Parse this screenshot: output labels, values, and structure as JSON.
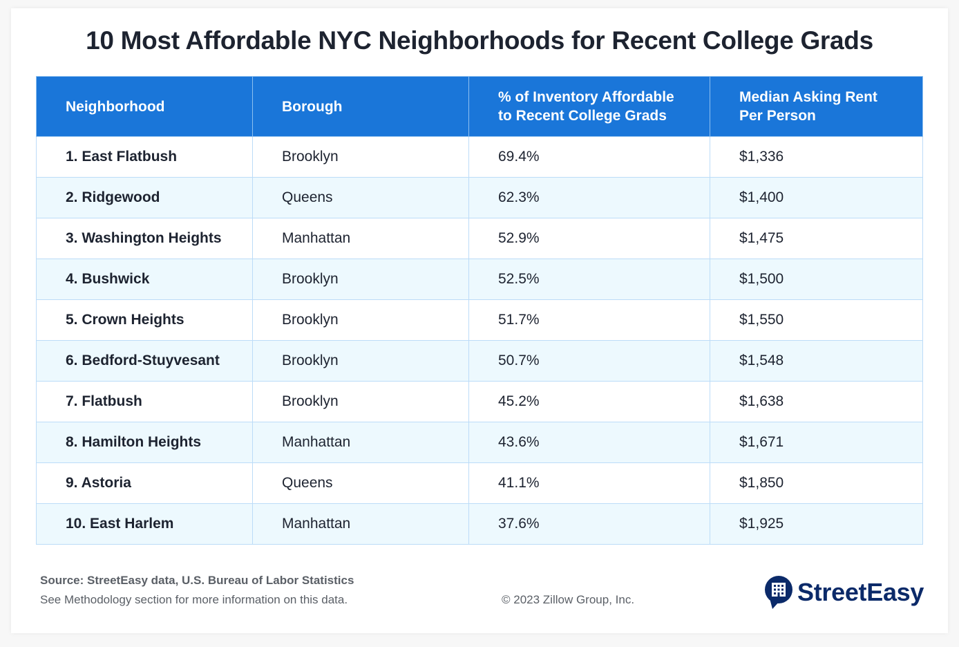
{
  "title": "10 Most Affordable NYC Neighborhoods for Recent College Grads",
  "colors": {
    "header_bg": "#1a76d9",
    "alt_row": "#edf9fe",
    "brand": "#0b2a69"
  },
  "table": {
    "headers": [
      "Neighborhood",
      "Borough",
      "% of Inventory Affordable to Recent College Grads",
      "Median Asking Rent Per Person"
    ],
    "header_lines": [
      [
        "Neighborhood"
      ],
      [
        "Borough"
      ],
      [
        "% of Inventory Affordable",
        "to Recent College Grads"
      ],
      [
        "Median Asking Rent",
        "Per Person"
      ]
    ],
    "rows": [
      [
        "1. East Flatbush",
        "Brooklyn",
        "69.4%",
        "$1,336"
      ],
      [
        "2. Ridgewood",
        "Queens",
        "62.3%",
        "$1,400"
      ],
      [
        "3. Washington Heights",
        "Manhattan",
        "52.9%",
        "$1,475"
      ],
      [
        "4. Bushwick",
        "Brooklyn",
        "52.5%",
        "$1,500"
      ],
      [
        "5. Crown Heights",
        "Brooklyn",
        "51.7%",
        "$1,550"
      ],
      [
        "6. Bedford-Stuyvesant",
        "Brooklyn",
        "50.7%",
        "$1,548"
      ],
      [
        "7. Flatbush",
        "Brooklyn",
        "45.2%",
        "$1,638"
      ],
      [
        "8. Hamilton Heights",
        "Manhattan",
        "43.6%",
        "$1,671"
      ],
      [
        "9. Astoria",
        "Queens",
        "41.1%",
        "$1,850"
      ],
      [
        "10. East Harlem",
        "Manhattan",
        "37.6%",
        "$1,925"
      ]
    ]
  },
  "footer": {
    "source": "Source: StreetEasy data, U.S. Bureau of Labor Statistics",
    "methodology": "See Methodology section for more information on this data.",
    "copyright": "© 2023 Zillow Group, Inc.",
    "logo_text": "StreetEasy",
    "logo_icon": "building-speech-bubble-icon"
  }
}
